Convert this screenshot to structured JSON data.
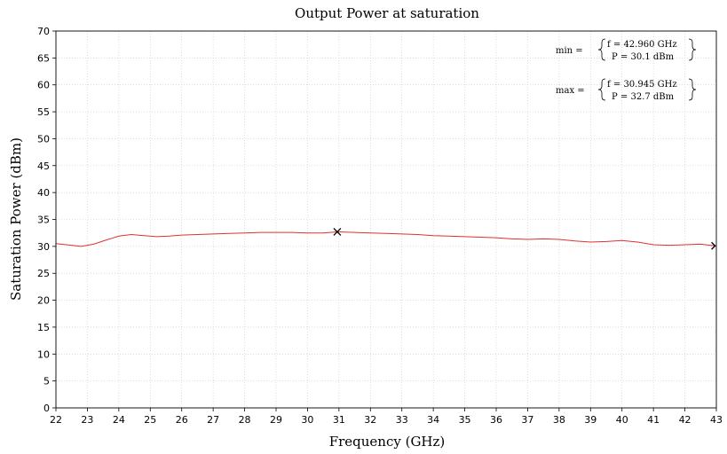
{
  "chart_data": {
    "type": "line",
    "title": "Output Power at saturation",
    "xlabel": "Frequency (GHz)",
    "ylabel": "Saturation Power (dBm)",
    "xlim": [
      22,
      43
    ],
    "ylim": [
      0,
      70
    ],
    "xticks": [
      "22",
      "23",
      "24",
      "25",
      "26",
      "27",
      "28",
      "29",
      "30",
      "31",
      "32",
      "33",
      "34",
      "35",
      "36",
      "37",
      "38",
      "39",
      "40",
      "41",
      "42",
      "43"
    ],
    "yticks": [
      "0",
      "5",
      "10",
      "15",
      "20",
      "25",
      "30",
      "35",
      "40",
      "45",
      "50",
      "55",
      "60",
      "65",
      "70"
    ],
    "grid": true,
    "line_color": "#e03030",
    "series": [
      {
        "x": [
          22.0,
          22.5,
          22.8,
          23.2,
          23.6,
          24.0,
          24.4,
          24.8,
          25.2,
          25.6,
          26.0,
          26.5,
          27.0,
          27.5,
          28.0,
          28.5,
          29.0,
          29.5,
          30.0,
          30.5,
          30.945,
          31.5,
          32.0,
          32.5,
          33.0,
          33.5,
          34.0,
          34.5,
          35.0,
          35.5,
          36.0,
          36.5,
          37.0,
          37.5,
          38.0,
          38.5,
          39.0,
          39.5,
          40.0,
          40.5,
          41.0,
          41.5,
          42.0,
          42.5,
          42.96,
          43.0
        ],
        "y": [
          30.5,
          30.2,
          30.0,
          30.4,
          31.2,
          31.9,
          32.2,
          32.0,
          31.8,
          31.9,
          32.1,
          32.2,
          32.3,
          32.4,
          32.5,
          32.6,
          32.6,
          32.6,
          32.5,
          32.5,
          32.7,
          32.6,
          32.5,
          32.4,
          32.3,
          32.2,
          32.0,
          31.9,
          31.8,
          31.7,
          31.6,
          31.4,
          31.3,
          31.4,
          31.3,
          31.0,
          30.8,
          30.9,
          31.1,
          30.8,
          30.3,
          30.2,
          30.3,
          30.4,
          30.1,
          30.1
        ]
      }
    ],
    "markers": [
      {
        "x": 30.945,
        "y": 32.7,
        "symbol": "cross"
      },
      {
        "x": 42.96,
        "y": 30.1,
        "symbol": "arrow"
      }
    ],
    "annotations": {
      "min": {
        "label": "min =",
        "f": "f = 42.960 GHz",
        "p": "P = 30.1 dBm"
      },
      "max": {
        "label": "max =",
        "f": "f = 30.945 GHz",
        "p": "P = 32.7 dBm"
      }
    }
  }
}
